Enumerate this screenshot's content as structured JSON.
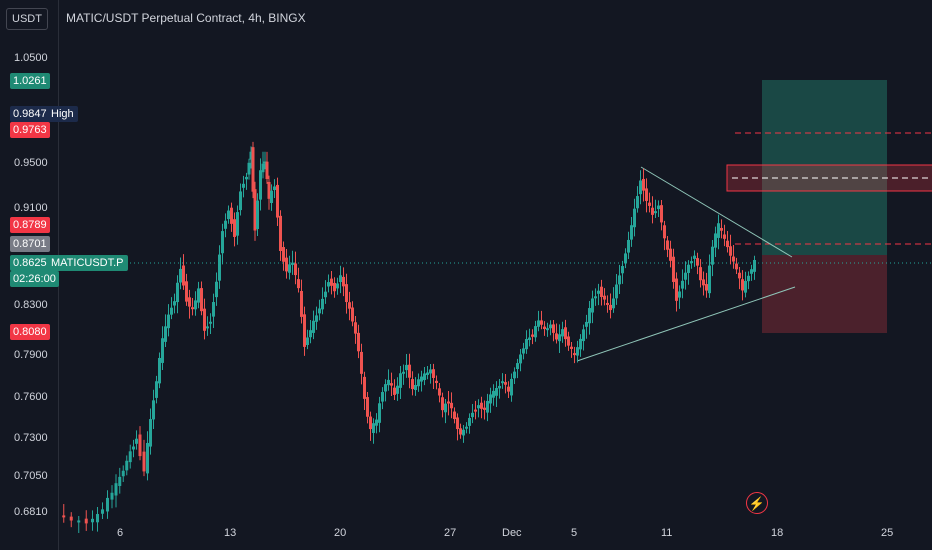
{
  "header": {
    "currency_button": "USDT",
    "title": "MATIC/USDT Perpetual Contract, 4h, BINGX"
  },
  "price_axis": {
    "ticks": [
      "1.0500",
      "0.9500",
      "0.9100",
      "0.8300",
      "0.7900",
      "0.7600",
      "0.7300",
      "0.7050",
      "0.6810"
    ]
  },
  "price_tags": {
    "target": "1.0261",
    "high_value": "0.9847",
    "high_label": "High",
    "level_red_top": "0.9763",
    "level_red_mid": "0.8789",
    "level_gray": "0.8701",
    "current_price": "0.8625",
    "countdown": "02:26:00",
    "symbol": "MATICUSDT.P",
    "stop": "0.8080"
  },
  "time_axis": {
    "ticks": [
      "6",
      "13",
      "20",
      "27",
      "Dec",
      "5",
      "11",
      "18",
      "25"
    ]
  },
  "colors": {
    "background": "#131722",
    "up": "#26a69a",
    "down": "#ef5350",
    "target_zone": "#1e5a51",
    "stop_zone": "#5a2430",
    "pink": "#f23645"
  },
  "icons": {
    "alert": "lightning-icon"
  }
}
